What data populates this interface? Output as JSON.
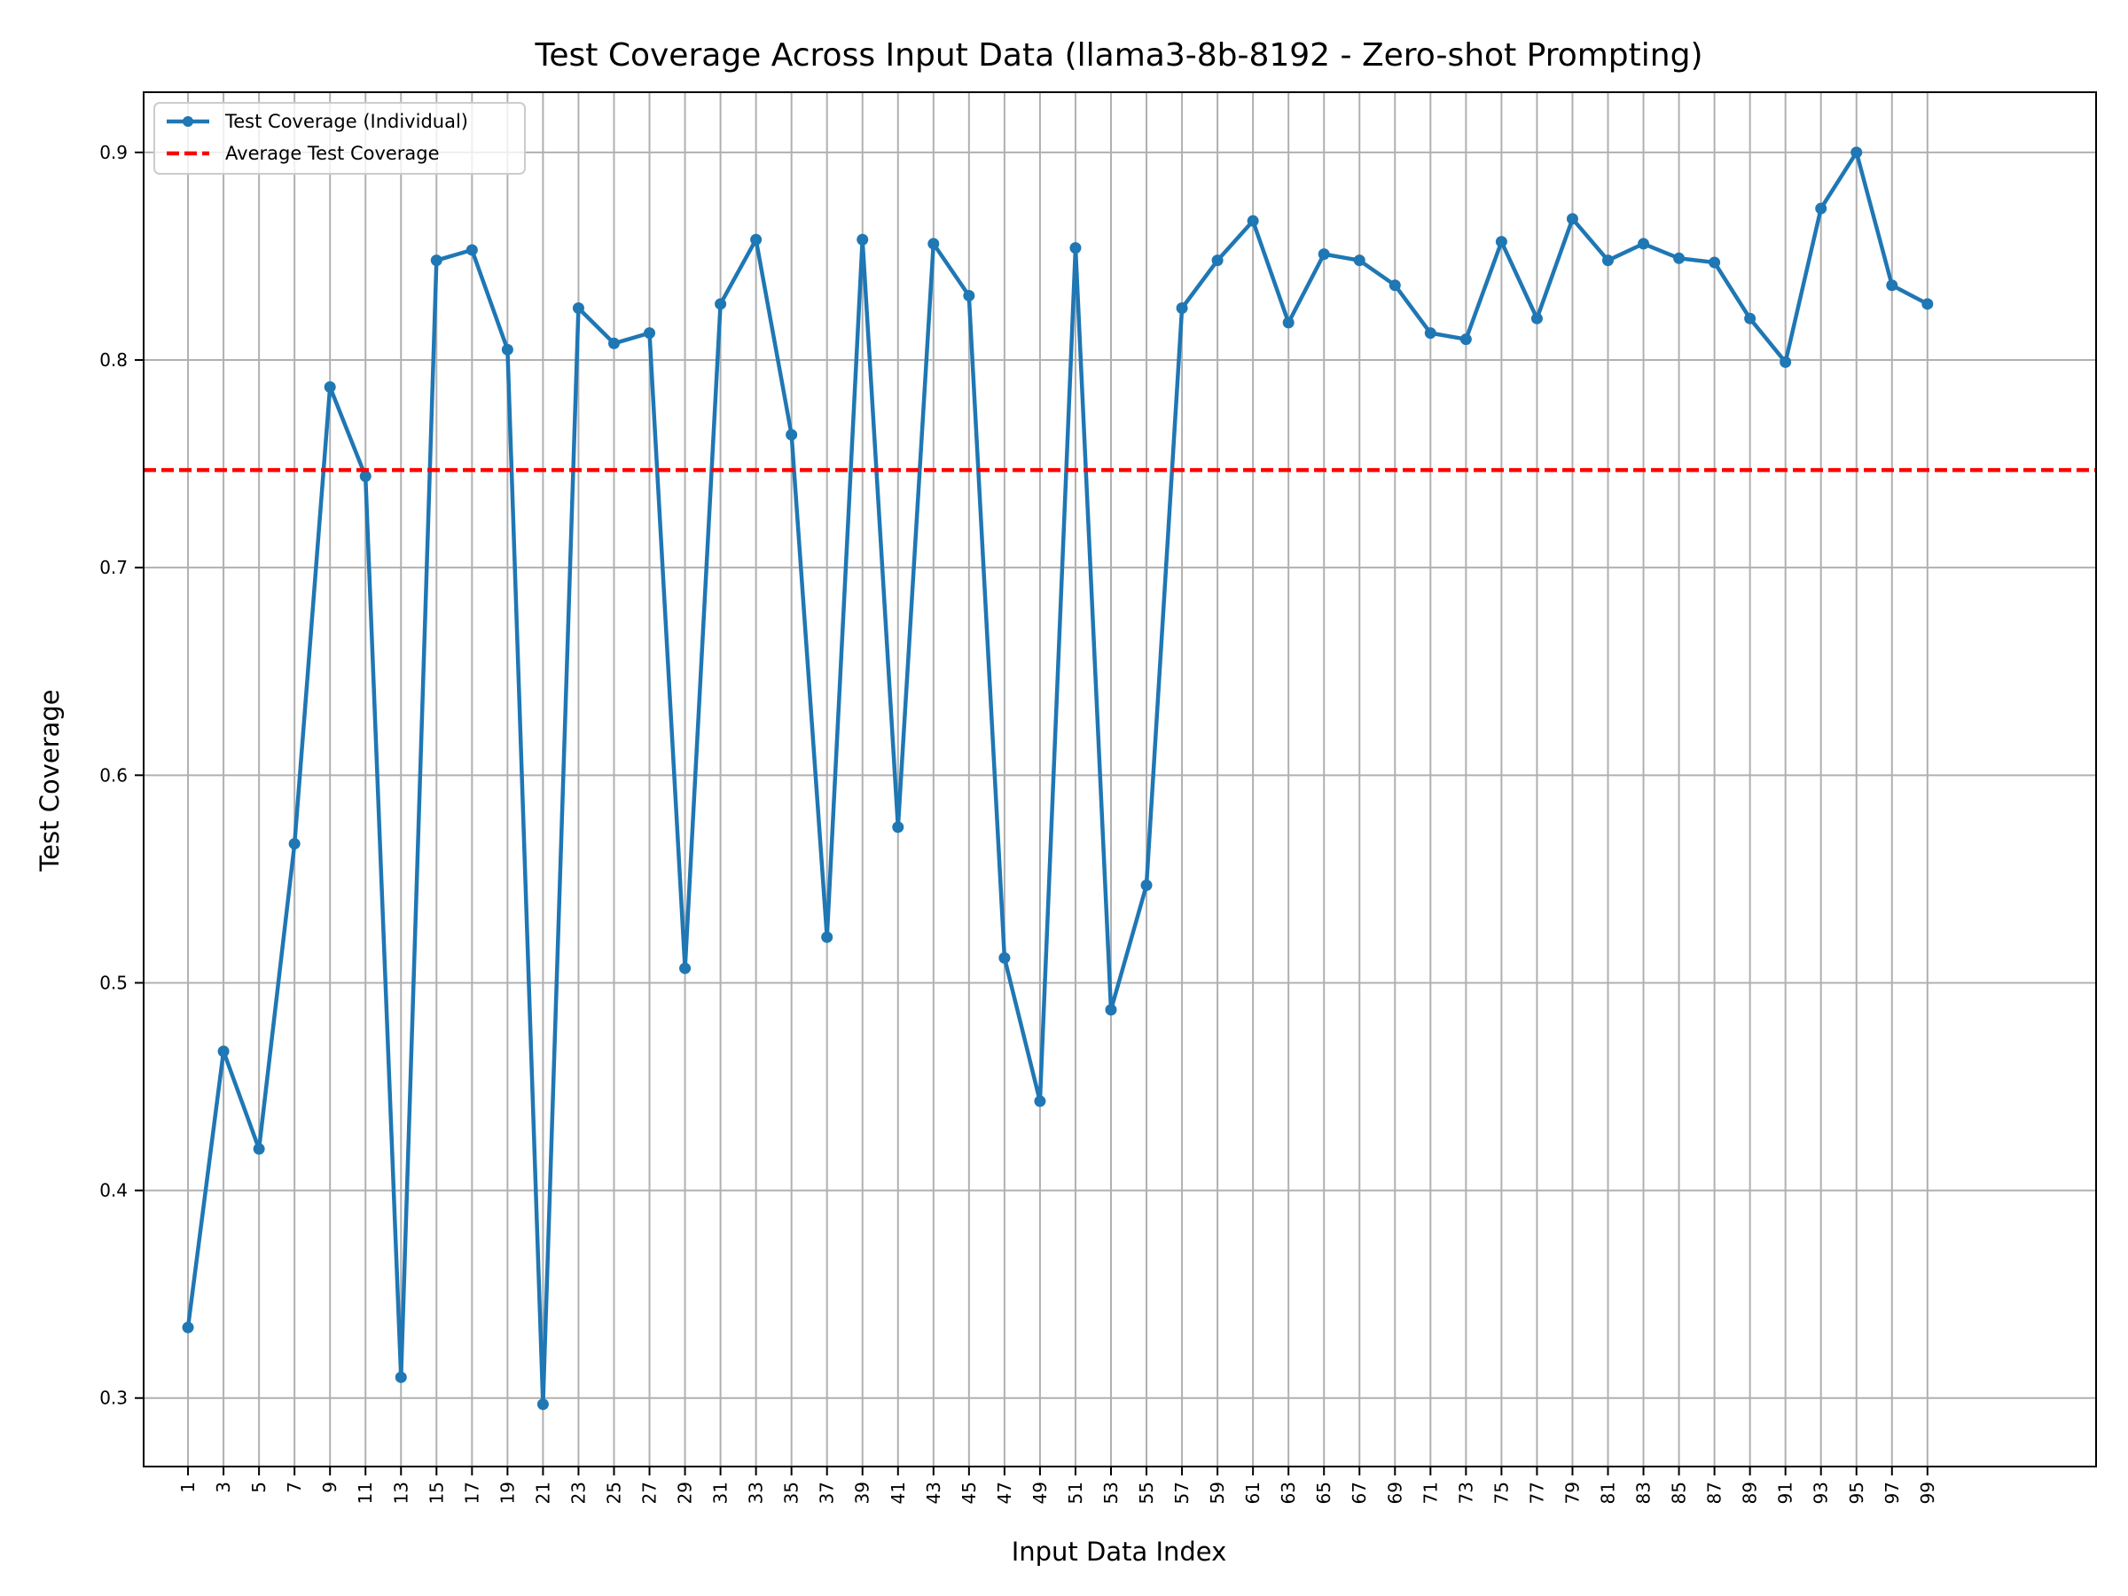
{
  "chart_data": {
    "type": "line",
    "title": "Test Coverage Across Input Data (llama3-8b-8192 - Zero-shot Prompting)",
    "xlabel": "Input Data Index",
    "ylabel": "Test Coverage",
    "xlim": [
      -1.5,
      108.5
    ],
    "ylim": [
      0.267,
      0.929
    ],
    "grid": true,
    "legend_position": "top-left",
    "x_ticks": [
      1,
      3,
      5,
      7,
      9,
      11,
      13,
      15,
      17,
      19,
      21,
      23,
      25,
      27,
      29,
      31,
      33,
      35,
      37,
      39,
      41,
      43,
      45,
      47,
      49,
      51,
      53,
      55,
      57,
      59,
      61,
      63,
      65,
      67,
      69,
      71,
      73,
      75,
      77,
      79,
      81,
      83,
      85,
      87,
      89,
      91,
      93,
      95,
      97,
      99
    ],
    "y_ticks": [
      0.3,
      0.4,
      0.5,
      0.6,
      0.7,
      0.8,
      0.9
    ],
    "series": [
      {
        "name": "Test Coverage (Individual)",
        "color": "#1f77b4",
        "style": "solid-with-markers",
        "x": [
          1,
          3,
          5,
          7,
          9,
          11,
          13,
          15,
          17,
          19,
          21,
          23,
          25,
          27,
          29,
          31,
          33,
          35,
          37,
          39,
          41,
          43,
          45,
          47,
          49,
          51,
          53,
          55,
          57,
          59,
          61,
          63,
          65,
          67,
          69,
          71,
          73,
          75,
          77,
          79,
          81,
          83,
          85,
          87,
          89,
          91,
          93,
          95,
          97,
          99
        ],
        "values": [
          0.334,
          0.467,
          0.42,
          0.567,
          0.787,
          0.744,
          0.31,
          0.848,
          0.853,
          0.805,
          0.297,
          0.825,
          0.808,
          0.813,
          0.507,
          0.827,
          0.858,
          0.764,
          0.522,
          0.858,
          0.575,
          0.856,
          0.831,
          0.512,
          0.443,
          0.854,
          0.487,
          0.547,
          0.825,
          0.848,
          0.867,
          0.818,
          0.851,
          0.848,
          0.836,
          0.813,
          0.81,
          0.857,
          0.82,
          0.868,
          0.848,
          0.856,
          0.849,
          0.847,
          0.82,
          0.799,
          0.873,
          0.9,
          0.836,
          0.827
        ]
      },
      {
        "name": "Average Test Coverage",
        "color": "#ff0000",
        "style": "dashed",
        "value": 0.747
      }
    ]
  }
}
